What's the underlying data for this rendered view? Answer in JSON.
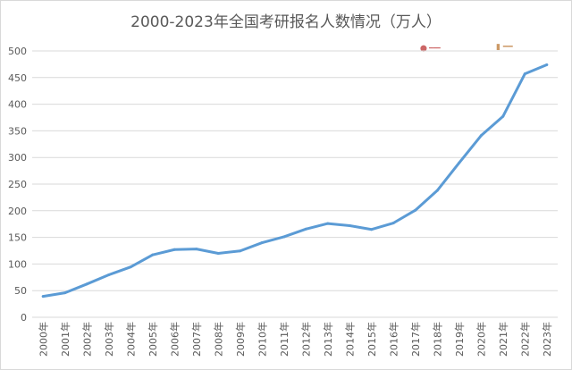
{
  "chart_data": {
    "type": "line",
    "title": "2000-2023年全国考研报名人数情况（万人）",
    "categories": [
      "2000年",
      "2001年",
      "2002年",
      "2003年",
      "2004年",
      "2005年",
      "2006年",
      "2007年",
      "2008年",
      "2009年",
      "2010年",
      "2011年",
      "2012年",
      "2013年",
      "2014年",
      "2015年",
      "2016年",
      "2017年",
      "2018年",
      "2019年",
      "2020年",
      "2021年",
      "2022年",
      "2023年"
    ],
    "values": [
      39.2,
      46,
      62.4,
      79.7,
      94.5,
      117.2,
      127.1,
      128.2,
      120,
      124.6,
      140,
      151.1,
      165.6,
      176,
      172,
      164.9,
      177,
      201,
      238,
      290,
      341,
      377,
      457,
      474
    ],
    "ylim": [
      0,
      500
    ],
    "yticks": [
      0,
      50,
      100,
      150,
      200,
      250,
      300,
      350,
      400,
      450,
      500
    ],
    "grid": true,
    "legend": "none",
    "line_color": "#5b9bd5"
  }
}
